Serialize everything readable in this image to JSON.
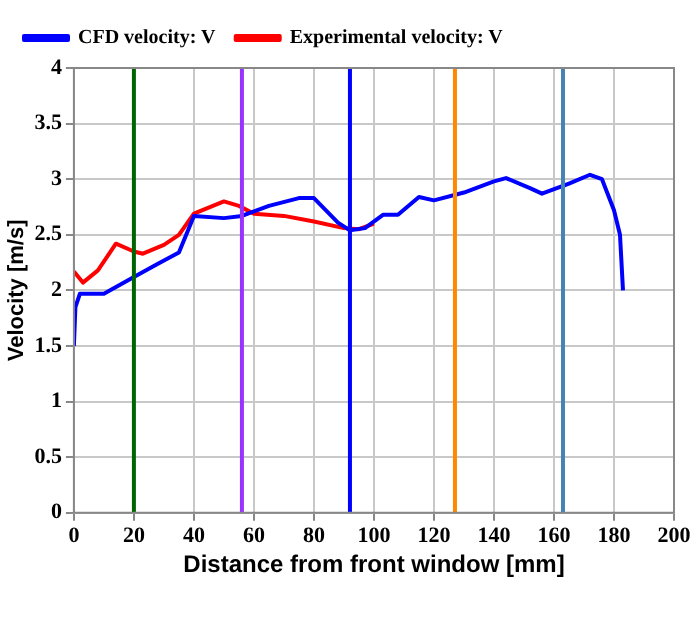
{
  "chart_data": {
    "type": "line",
    "xlabel": "Distance from front window [mm]",
    "ylabel": "Velocity [m/s]",
    "xlim": [
      0,
      200
    ],
    "xticks": [
      0,
      20,
      40,
      60,
      80,
      100,
      120,
      140,
      160,
      180,
      200
    ],
    "ylim": [
      0,
      4
    ],
    "yticks": [
      0,
      0.5,
      1,
      1.5,
      2,
      2.5,
      3,
      3.5,
      4
    ],
    "grid": true,
    "legend": "top left",
    "marker": "none",
    "line_style": "solid",
    "series": [
      {
        "name": "CFD velocity: V",
        "color": "#0000ff",
        "x": [
          0,
          0.5,
          2,
          10,
          20,
          28,
          35,
          40,
          50,
          56,
          65,
          75,
          80,
          88,
          92,
          97,
          103,
          108,
          115,
          120,
          130,
          140,
          144,
          152,
          156,
          165,
          172,
          176,
          180,
          182,
          183
        ],
        "values": [
          1.5,
          1.85,
          1.97,
          1.97,
          2.12,
          2.24,
          2.34,
          2.67,
          2.65,
          2.67,
          2.76,
          2.83,
          2.83,
          2.61,
          2.54,
          2.56,
          2.68,
          2.68,
          2.84,
          2.81,
          2.88,
          2.98,
          3.01,
          2.92,
          2.87,
          2.96,
          3.04,
          3.0,
          2.72,
          2.5,
          2.0
        ]
      },
      {
        "name": "Experimental velocity: V",
        "color": "#ff0000",
        "x": [
          0,
          3,
          8,
          14,
          20,
          23,
          30,
          35,
          40,
          50,
          55,
          60,
          70,
          80,
          90,
          95,
          100
        ],
        "values": [
          2.17,
          2.07,
          2.18,
          2.42,
          2.35,
          2.33,
          2.41,
          2.5,
          2.69,
          2.8,
          2.76,
          2.69,
          2.67,
          2.62,
          2.56,
          2.55,
          2.6
        ]
      }
    ],
    "ref_lines": [
      {
        "axis": "x",
        "value": 20,
        "color": "#006400"
      },
      {
        "axis": "x",
        "value": 56,
        "color": "#9933ff"
      },
      {
        "axis": "x",
        "value": 92,
        "color": "#0000ff"
      },
      {
        "axis": "x",
        "value": 127,
        "color": "#ff8800"
      },
      {
        "axis": "x",
        "value": 163,
        "color": "#4682b4"
      }
    ]
  }
}
